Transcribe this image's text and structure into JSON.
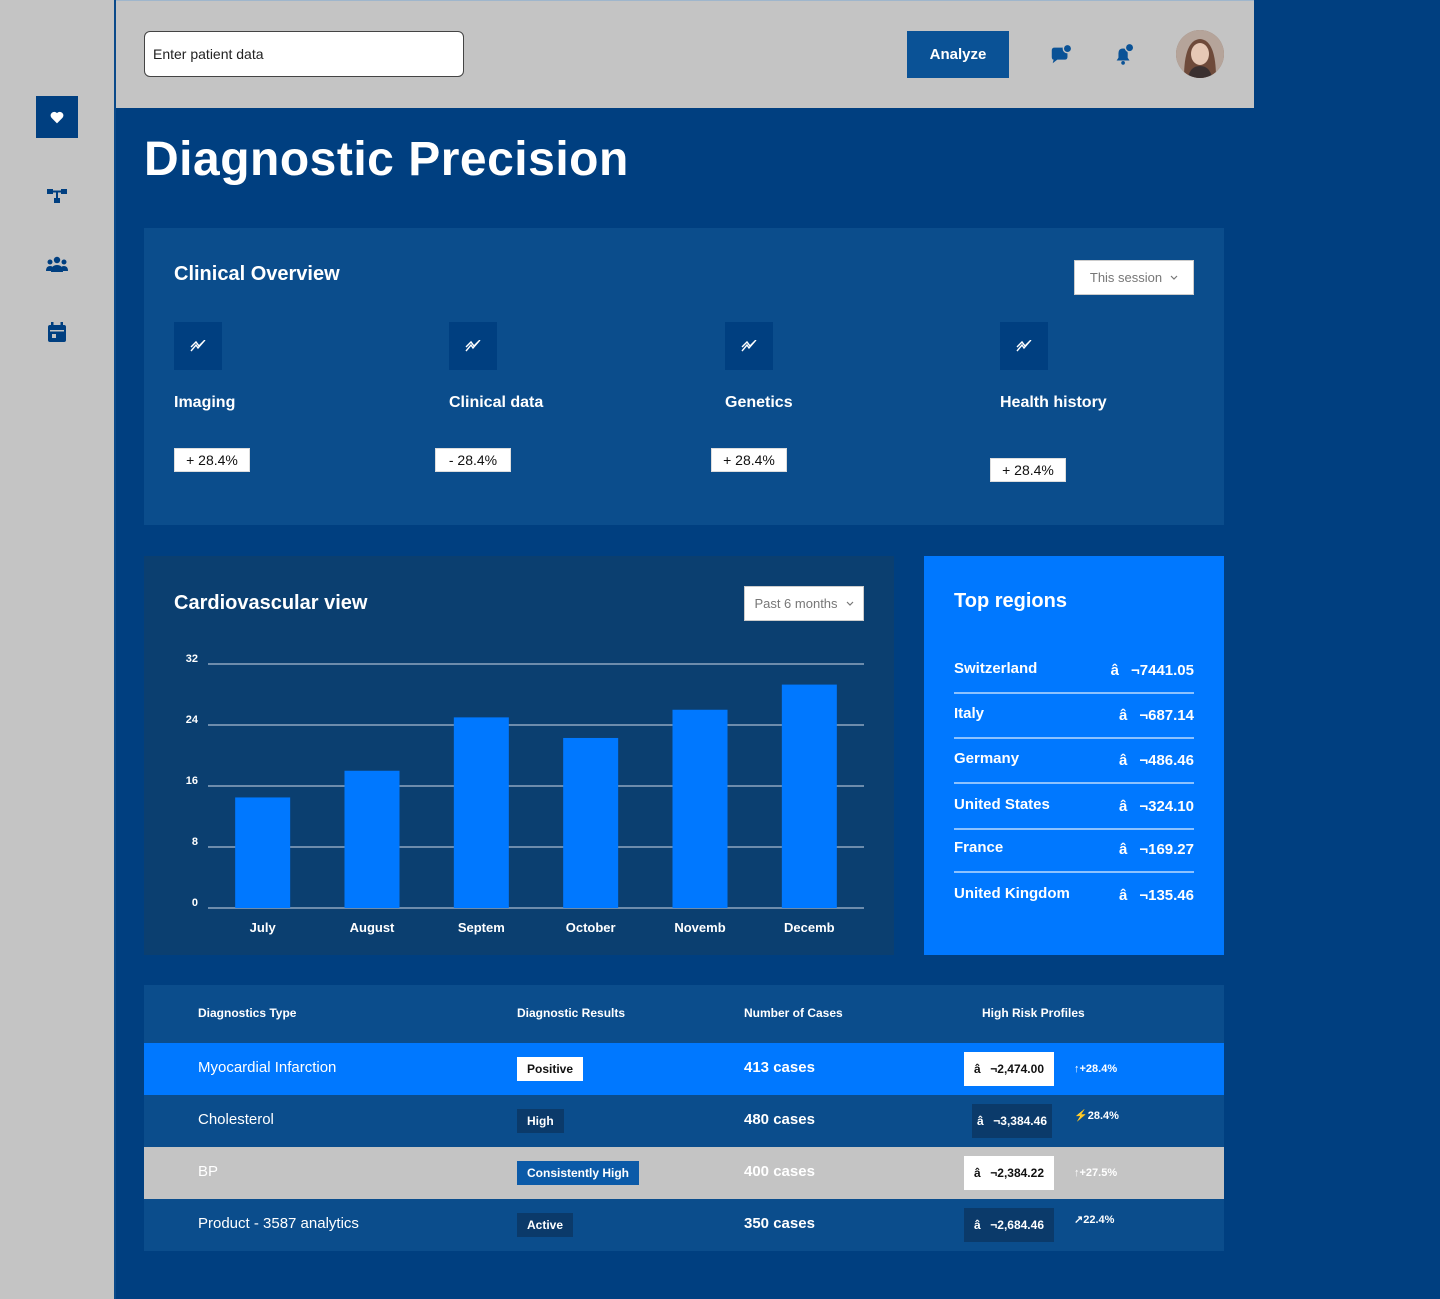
{
  "sidebar": {
    "items": [
      {
        "icon": "heart-icon"
      },
      {
        "icon": "network-icon"
      },
      {
        "icon": "users-icon"
      },
      {
        "icon": "calendar-icon"
      }
    ]
  },
  "header": {
    "search_placeholder": "Enter patient data",
    "analyze_label": "Analyze",
    "icons": [
      "chat-icon",
      "bell-icon"
    ]
  },
  "page": {
    "title": "Diagnostic Precision"
  },
  "overview": {
    "title": "Clinical Overview",
    "period": "This session",
    "metrics": [
      {
        "label": "Imaging",
        "change": "+ 28.4%"
      },
      {
        "label": "Clinical data",
        "change": "- 28.4%"
      },
      {
        "label": "Genetics",
        "change": "+ 28.4%"
      },
      {
        "label": "Health history",
        "change": "+ 28.4%"
      }
    ]
  },
  "cardio": {
    "title": "Cardiovascular view",
    "period": "Past 6 months"
  },
  "chart_data": {
    "type": "bar",
    "title": "Cardiovascular view",
    "categories": [
      "July",
      "August",
      "Septem",
      "October",
      "Novemb",
      "Decemb"
    ],
    "values": [
      14.5,
      18,
      25,
      22.3,
      26,
      29.3
    ],
    "ylim": [
      0,
      32
    ],
    "yticks": [
      0,
      8,
      16,
      24,
      32
    ],
    "grid": true,
    "bar_color": "#0078ff"
  },
  "regions": {
    "title": "Top regions",
    "items": [
      {
        "name": "Switzerland",
        "value": "â¬7441.05"
      },
      {
        "name": "Italy",
        "value": "â¬687.14"
      },
      {
        "name": "Germany",
        "value": "â¬486.46"
      },
      {
        "name": "United States",
        "value": "â¬324.10"
      },
      {
        "name": "France",
        "value": "â¬169.27"
      },
      {
        "name": "United Kingdom",
        "value": "â¬135.46"
      }
    ]
  },
  "table": {
    "headers": [
      "Diagnostics Type",
      "Diagnostic Results",
      "Number of Cases",
      "High Risk Profiles"
    ],
    "rows": [
      {
        "type": "Myocardial Infarction",
        "result": "Positive",
        "cases": "413 cases",
        "amount": "â¬2,474.00",
        "delta": "+28.4%",
        "delta_icon": "↑"
      },
      {
        "type": "Cholesterol",
        "result": "High",
        "cases": "480 cases",
        "amount": "â¬3,384.46",
        "delta": "28.4%",
        "delta_icon": "⚡"
      },
      {
        "type": "BP",
        "result": "Consistently High",
        "cases": "400 cases",
        "amount": "â¬2,384.22",
        "delta": "+27.5%",
        "delta_icon": "↑"
      },
      {
        "type": "Product - 3587 analytics",
        "result": "Active",
        "cases": "350 cases",
        "amount": "â¬2,684.46",
        "delta": "22.4%",
        "delta_icon": "↗"
      }
    ]
  },
  "colors": {
    "page_bg": "#003f80",
    "card_bg": "#0b4d8c",
    "accent": "#0078ff",
    "sidebar_bg": "#c4c4c4"
  }
}
